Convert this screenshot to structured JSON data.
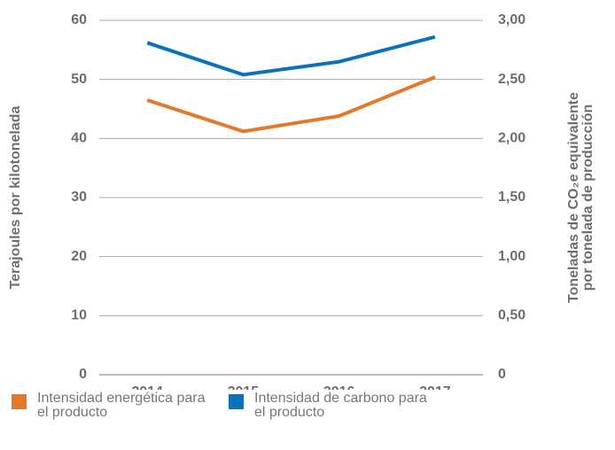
{
  "chart_data": {
    "type": "line",
    "categories": [
      "2014",
      "2015",
      "2016",
      "2017"
    ],
    "series": [
      {
        "name": "Intensidad energética para el producto",
        "color": "#e2792b",
        "values": [
          46.5,
          41.2,
          43.8,
          50.4
        ]
      },
      {
        "name": "Intensidad de carbono para el producto",
        "color": "#0a72b8",
        "values": [
          2.81,
          2.54,
          2.65,
          2.86
        ],
        "axis": "y2"
      }
    ],
    "ylabel": "Terajoules por kilotonelada",
    "y2label": [
      "Toneladas de CO₂e equivalente",
      "por tonelada de producción"
    ],
    "ylim": [
      0,
      60
    ],
    "yticks": [
      0,
      10,
      20,
      30,
      40,
      50,
      60
    ],
    "y2lim": [
      0,
      3
    ],
    "y2ticks": [
      0,
      {
        "value": 0.5,
        "label": "0,50"
      },
      {
        "value": 1,
        "label": "1,00"
      },
      {
        "value": 1.5,
        "label": "1,50"
      },
      {
        "value": 2,
        "label": "2,00"
      },
      {
        "value": 2.5,
        "label": "2,50"
      },
      {
        "value": 3,
        "label": "3,00"
      }
    ],
    "grid": true
  }
}
